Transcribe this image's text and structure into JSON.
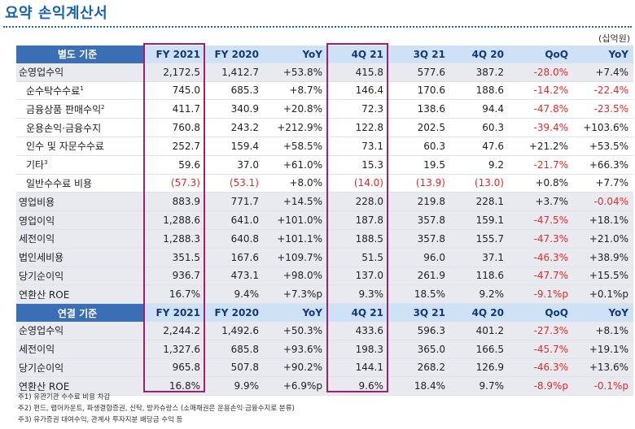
{
  "title": "요약 손익계산서",
  "unit": "(십억원)",
  "standalone": {
    "header": [
      "별도 기준",
      "FY 2021",
      "FY 2020",
      "YoY",
      "4Q 21",
      "3Q 21",
      "4Q 20",
      "QoQ",
      "YoY"
    ],
    "rows": [
      {
        "label": "순영업수익",
        "sub": false,
        "sup": "",
        "cells": [
          "2,172.5",
          "1,412.7",
          "+53.8%",
          "415.8",
          "577.6",
          "387.2",
          "-28.0%",
          "+7.4%"
        ]
      },
      {
        "label": "순수탁수수료",
        "sub": true,
        "sup": "1",
        "cells": [
          "745.0",
          "685.3",
          "+8.7%",
          "146.4",
          "170.6",
          "188.6",
          "-14.2%",
          "-22.4%"
        ]
      },
      {
        "label": "금융상품 판매수익",
        "sub": true,
        "sup": "2",
        "cells": [
          "411.7",
          "340.9",
          "+20.8%",
          "72.3",
          "138.6",
          "94.4",
          "-47.8%",
          "-23.5%"
        ]
      },
      {
        "label": "운용손익·금융수지",
        "sub": true,
        "sup": "",
        "cells": [
          "760.8",
          "243.2",
          "+212.9%",
          "122.8",
          "202.5",
          "60.3",
          "-39.4%",
          "+103.6%"
        ]
      },
      {
        "label": "인수 및 자문수수료",
        "sub": true,
        "sup": "",
        "cells": [
          "252.7",
          "159.4",
          "+58.5%",
          "73.1",
          "60.3",
          "47.6",
          "+21.2%",
          "+53.5%"
        ]
      },
      {
        "label": "기타",
        "sub": true,
        "sup": "3",
        "cells": [
          "59.6",
          "37.0",
          "+61.0%",
          "15.3",
          "19.5",
          "9.2",
          "-21.7%",
          "+66.3%"
        ]
      },
      {
        "label": "일반수수료 비용",
        "sub": true,
        "sup": "",
        "cells": [
          "(57.3)",
          "(53.1)",
          "+8.0%",
          "(14.0)",
          "(13.9)",
          "(13.0)",
          "+0.8%",
          "+7.7%"
        ]
      },
      {
        "label": "영업비용",
        "sub": false,
        "sup": "",
        "cells": [
          "883.9",
          "771.7",
          "+14.5%",
          "228.0",
          "219.8",
          "228.1",
          "+3.7%",
          "-0.04%"
        ]
      },
      {
        "label": "영업이익",
        "sub": false,
        "sup": "",
        "cells": [
          "1,288.6",
          "641.0",
          "+101.0%",
          "187.8",
          "357.8",
          "159.1",
          "-47.5%",
          "+18.1%"
        ]
      },
      {
        "label": "세전이익",
        "sub": false,
        "sup": "",
        "cells": [
          "1,288.3",
          "640.8",
          "+101.1%",
          "188.5",
          "357.8",
          "155.7",
          "-47.3%",
          "+21.0%"
        ]
      },
      {
        "label": "법인세비용",
        "sub": false,
        "sup": "",
        "cells": [
          "351.5",
          "167.6",
          "+109.7%",
          "51.5",
          "96.0",
          "37.1",
          "-46.3%",
          "+38.9%"
        ]
      },
      {
        "label": "당기순이익",
        "sub": false,
        "sup": "",
        "cells": [
          "936.7",
          "473.1",
          "+98.0%",
          "137.0",
          "261.9",
          "118.6",
          "-47.7%",
          "+15.5%"
        ]
      },
      {
        "label": "연환산 ROE",
        "sub": false,
        "sup": "",
        "cells": [
          "16.7%",
          "9.4%",
          "+7.3%p",
          "9.3%",
          "18.5%",
          "9.2%",
          "-9.1%p",
          "+0.1%p"
        ]
      }
    ]
  },
  "consolidated": {
    "header": [
      "연결 기준",
      "FY 2021",
      "FY 2020",
      "YoY",
      "4Q 21",
      "3Q 21",
      "4Q 20",
      "QoQ",
      "YoY"
    ],
    "rows": [
      {
        "label": "순영업수익",
        "sub": false,
        "sup": "",
        "cells": [
          "2,244.2",
          "1,492.6",
          "+50.3%",
          "433.6",
          "596.3",
          "401.2",
          "-27.3%",
          "+8.1%"
        ]
      },
      {
        "label": "세전이익",
        "sub": false,
        "sup": "",
        "cells": [
          "1,327.6",
          "685.8",
          "+93.6%",
          "198.3",
          "365.0",
          "166.5",
          "-45.7%",
          "+19.1%"
        ]
      },
      {
        "label": "당기순이익",
        "sub": false,
        "sup": "",
        "cells": [
          "965.8",
          "507.8",
          "+90.2%",
          "144.1",
          "268.2",
          "126.9",
          "-46.3%",
          "+13.6%"
        ]
      },
      {
        "label": "연환산 ROE",
        "sub": false,
        "sup": "",
        "cells": [
          "16.8%",
          "9.9%",
          "+6.9%p",
          "9.6%",
          "18.4%",
          "9.7%",
          "-8.9%p",
          "-0.1%p"
        ]
      }
    ]
  },
  "notes": [
    "주1) 유관기관 수수료 비용 차감",
    "주2) 펀드, 랩어카운트, 파생결합증권, 신탁, 방카슈랑스 (소매채권은 운용손익·금융수지로 분류)",
    "주3) 유가증권 대여수익, 관계사 투자지분 배당금 수익 등"
  ],
  "colors": {
    "accent": "#1a62b5",
    "header_label_bg": "#3a6fb5",
    "header_bg": "#cfe1f5",
    "negative": "#e22b2b",
    "highlight_frame": "#a0206a"
  }
}
